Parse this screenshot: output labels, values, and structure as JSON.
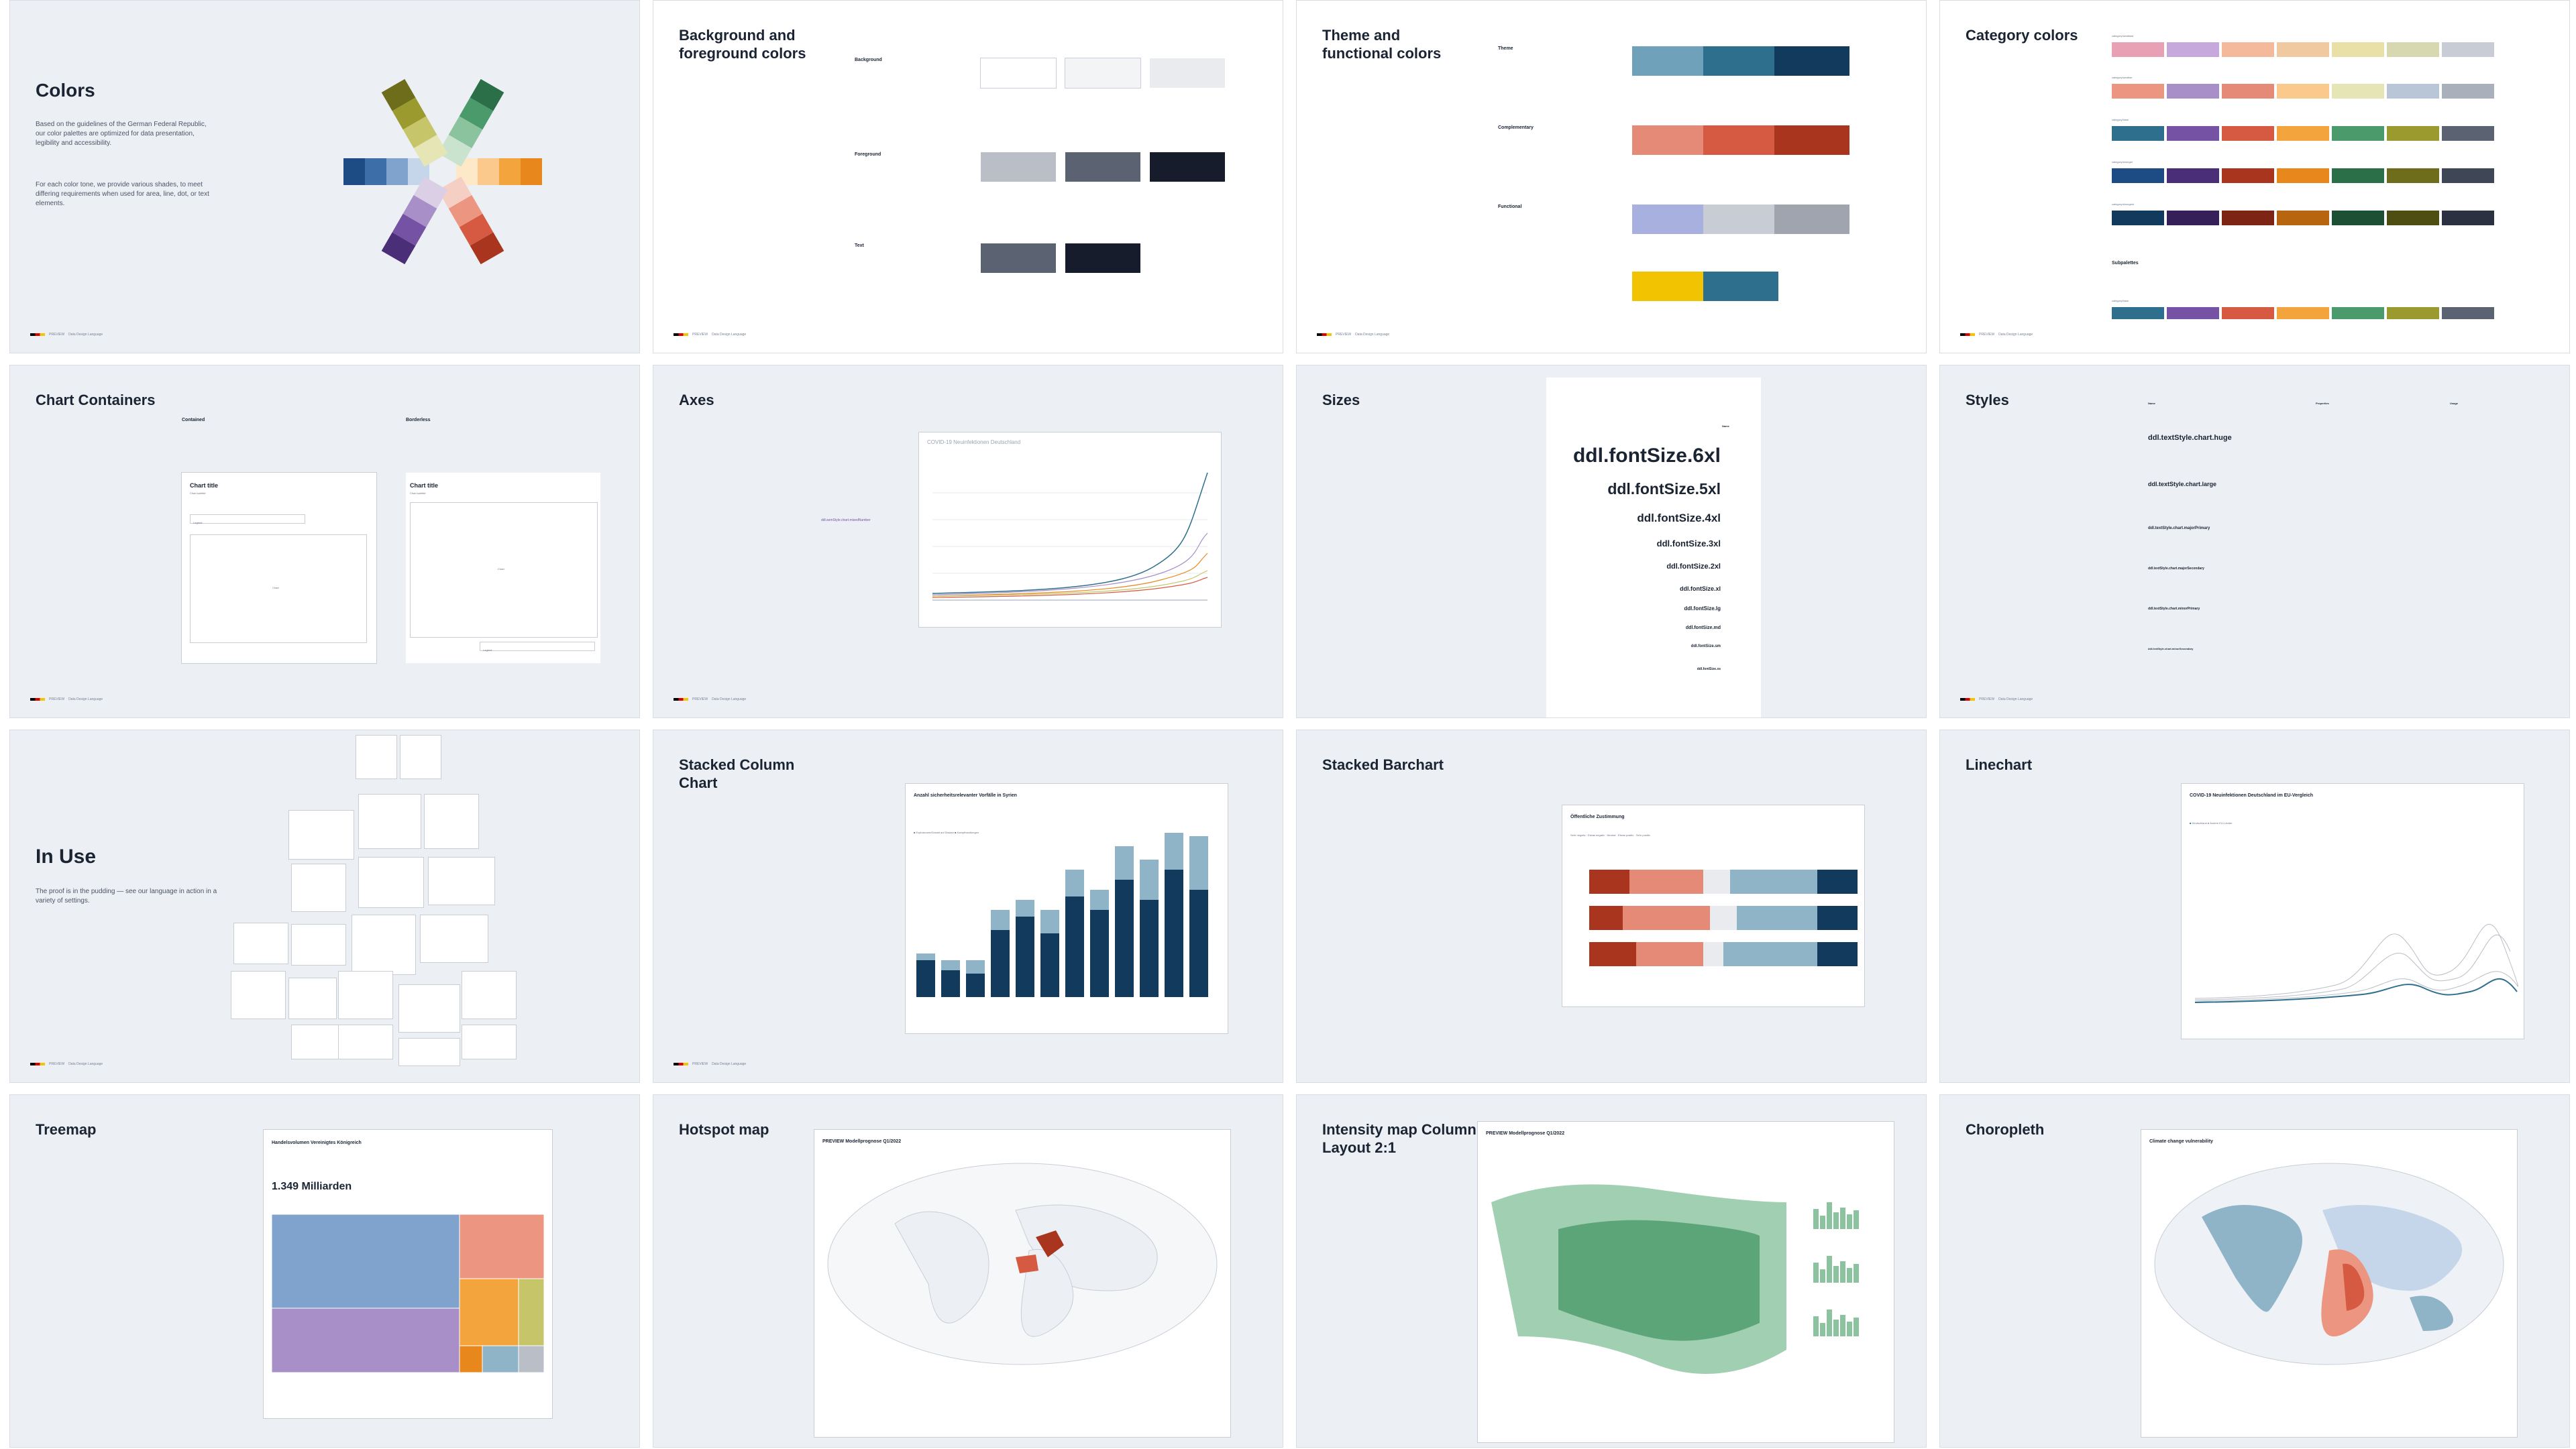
{
  "brand": {
    "name": "PREVIEW",
    "caption": "Data Design Language"
  },
  "slides": {
    "colors": {
      "title": "Colors",
      "body1": "Based on the guidelines of the German Federal Republic, our color palettes are optimized for data presentation, legibility and accessibility.",
      "body2": "For each color tone, we provide various shades, to meet differing requirements when used for area, line, dot, or text elements."
    },
    "bgfg": {
      "title": "Background and foreground colors",
      "sections": [
        "Background",
        "Foreground",
        "Text"
      ]
    },
    "theme": {
      "title": "Theme and functional colors",
      "sections": [
        "Theme",
        "Complementary",
        "Functional"
      ]
    },
    "category": {
      "title": "Category colors",
      "groups": [
        "category/wealland",
        "category/weather",
        "category/base",
        "category/stronger",
        "category/strongest",
        "Subpalettes",
        "category/base"
      ]
    },
    "containers": {
      "title": "Chart Containers",
      "contained": "Contained",
      "borderless": "Borderless",
      "chart_title": "Chart title",
      "chart_sub": "Chart subtitle",
      "legend": "Legend",
      "chart": "Chart"
    },
    "axes": {
      "title": "Axes",
      "chart_title": "COVID-19 Neuinfektionen Deutschland",
      "highlight": "ddl.semStyle.chart.mixedNumber"
    },
    "sizes": {
      "title": "Sizes",
      "header": "Name",
      "items": [
        "ddl.fontSize.6xl",
        "ddl.fontSize.5xl",
        "ddl.fontSize.4xl",
        "ddl.fontSize.3xl",
        "ddl.fontSize.2xl",
        "ddl.fontSize.xl",
        "ddl.fontSize.lg",
        "ddl.fontSize.md",
        "ddl.fontSize.sm",
        "ddl.fontSize.xs"
      ]
    },
    "styles": {
      "title": "Styles",
      "headers": [
        "Name",
        "Properties",
        "Usage"
      ],
      "items": [
        "ddl.textStyle.chart.huge",
        "ddl.textStyle.chart.large",
        "ddl.textStyle.chart.majorPrimary",
        "ddl.textStyle.chart.majorSecondary",
        "ddl.textStyle.chart.minorPrimary",
        "ddl.textStyle.chart.minorSecondary"
      ]
    },
    "inuse": {
      "title": "In Use",
      "body": "The proof is in the pudding — see our language in action in a variety of settings."
    },
    "stackedcol": {
      "title": "Stacked Column Chart",
      "chart_title": "Anzahl sicherheitsrelevanter Vorfälle in Syrien",
      "legend": [
        "Explosionen/Gewalt auf Distanz",
        "Kampfhandlungen"
      ]
    },
    "stackedbar": {
      "title": "Stacked Barchart",
      "chart_title": "Öffentliche Zustimmung",
      "legend": [
        "Sehr negativ",
        "Etwas negativ",
        "Neutral",
        "Etwas positiv",
        "Sehr positiv"
      ]
    },
    "linechart": {
      "title": "Linechart",
      "chart_title": "COVID-19 Neuinfektionen Deutschland im EU-Vergleich",
      "legend": [
        "Deutschland",
        "Andere EU-Länder"
      ]
    },
    "treemap": {
      "title": "Treemap",
      "chart_title": "Handelsvolumen Vereinigtes Königreich",
      "total": "1.349 Milliarden"
    },
    "hotspot": {
      "title": "Hotspot map",
      "chart_title": "PREVIEW Modellprognose Q1/2022"
    },
    "intensity": {
      "title": "Intensity map Column Layout 2:1",
      "chart_title": "PREVIEW Modellprognose Q1/2022"
    },
    "choropleth": {
      "title": "Choropleth",
      "chart_title": "Climate change vulnerability"
    }
  },
  "colors": {
    "teal": "#2e6f8e",
    "navy": "#123a5c",
    "lightblue": "#8fb4c8",
    "red": "#b43c2a",
    "salmon": "#e58a76"
  }
}
